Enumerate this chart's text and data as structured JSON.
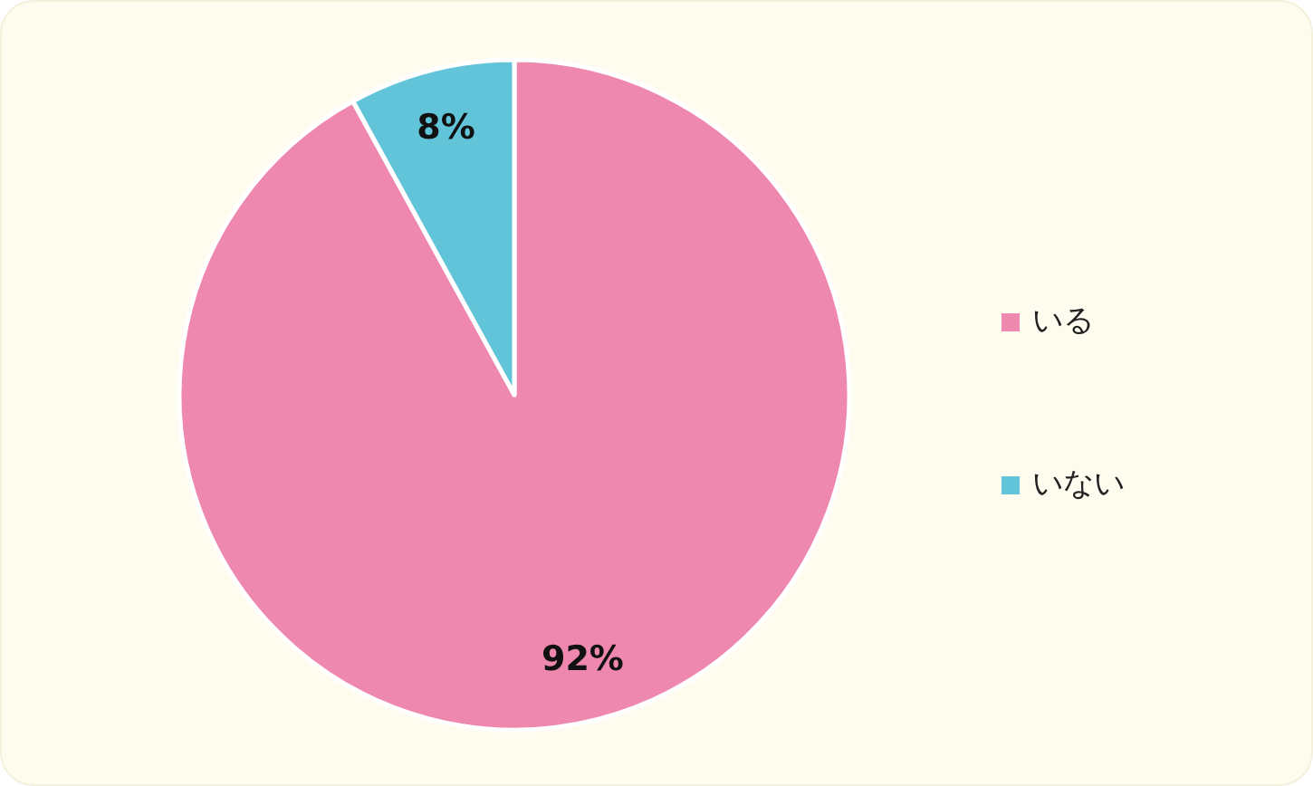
{
  "chart_data": {
    "type": "pie",
    "categories": [
      "いる",
      "いない"
    ],
    "values": [
      92,
      8
    ],
    "colors": [
      "#ef88ae",
      "#62c4d8"
    ],
    "value_labels": [
      "92%",
      "8%"
    ],
    "legend": "right"
  }
}
